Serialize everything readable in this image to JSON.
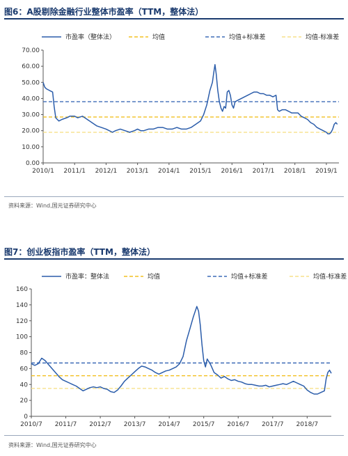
{
  "figures": [
    {
      "title": "图6：A股剔除金融行业整体市盈率（TTM，整体法）",
      "source": "资料来源：Wind,国元证券研究中心"
    },
    {
      "title": "图7：创业板指市盈率（TTM，整体法）",
      "source": "资料来源：Wind,国元证券研究中心"
    }
  ],
  "chart_data": [
    {
      "type": "line",
      "ylim": [
        0,
        70
      ],
      "yticks": [
        "0.00",
        "10.00",
        "20.00",
        "30.00",
        "40.00",
        "50.00",
        "60.00",
        "70.00"
      ],
      "xlim": [
        2010.0,
        2019.4
      ],
      "xticks": [
        {
          "label": "2010/1",
          "x": 2010.0
        },
        {
          "label": "2011/1",
          "x": 2011.0
        },
        {
          "label": "2012/1",
          "x": 2012.0
        },
        {
          "label": "2013/1",
          "x": 2013.0
        },
        {
          "label": "2014/1",
          "x": 2014.0
        },
        {
          "label": "2015/1",
          "x": 2015.0
        },
        {
          "label": "2016/1",
          "x": 2016.0
        },
        {
          "label": "2017/1",
          "x": 2017.0
        },
        {
          "label": "2018/1",
          "x": 2018.0
        },
        {
          "label": "2019/1",
          "x": 2019.0
        }
      ],
      "legend": [
        "市盈率（整体法）",
        "均值",
        "均值+标准差",
        "均值-标准差"
      ],
      "colors": {
        "pe": "#2a5caa",
        "mean": "#f2c020",
        "upper": "#3d6bb7",
        "lower": "#f7e08a"
      },
      "mean": 28.5,
      "upper": 38.0,
      "lower": 19.0,
      "series": {
        "x": [
          2010.0,
          2010.05,
          2010.1,
          2010.2,
          2010.3,
          2010.35,
          2010.4,
          2010.45,
          2010.5,
          2010.6,
          2010.75,
          2010.85,
          2011.0,
          2011.1,
          2011.25,
          2011.4,
          2011.55,
          2011.7,
          2011.85,
          2012.0,
          2012.1,
          2012.2,
          2012.3,
          2012.45,
          2012.6,
          2012.75,
          2012.9,
          2013.0,
          2013.1,
          2013.2,
          2013.35,
          2013.5,
          2013.65,
          2013.8,
          2013.95,
          2014.1,
          2014.25,
          2014.4,
          2014.55,
          2014.7,
          2014.85,
          2015.0,
          2015.1,
          2015.2,
          2015.3,
          2015.38,
          2015.42,
          2015.46,
          2015.5,
          2015.55,
          2015.6,
          2015.65,
          2015.7,
          2015.75,
          2015.8,
          2015.85,
          2015.9,
          2015.95,
          2016.0,
          2016.05,
          2016.1,
          2016.2,
          2016.3,
          2016.4,
          2016.5,
          2016.6,
          2016.7,
          2016.8,
          2016.9,
          2017.0,
          2017.1,
          2017.2,
          2017.3,
          2017.4,
          2017.45,
          2017.5,
          2017.6,
          2017.7,
          2017.8,
          2017.9,
          2018.0,
          2018.1,
          2018.2,
          2018.3,
          2018.4,
          2018.5,
          2018.6,
          2018.7,
          2018.8,
          2018.9,
          2019.0,
          2019.05,
          2019.1,
          2019.15,
          2019.2,
          2019.25,
          2019.3,
          2019.35
        ],
        "values": [
          50,
          47,
          46,
          45,
          44,
          35,
          28,
          27,
          26,
          27,
          28,
          29,
          29,
          28,
          29,
          27,
          25,
          23,
          22,
          21,
          20,
          19,
          20,
          21,
          20,
          19,
          20,
          21,
          20,
          20,
          21,
          21,
          22,
          22,
          21,
          21,
          22,
          21,
          21,
          22,
          24,
          26,
          30,
          36,
          45,
          50,
          56,
          61,
          55,
          45,
          38,
          34,
          32,
          35,
          34,
          44,
          45,
          42,
          36,
          34,
          38,
          39,
          40,
          41,
          42,
          43,
          44,
          44,
          43,
          43,
          42,
          42,
          41,
          42,
          33,
          32,
          33,
          33,
          32,
          31,
          31,
          31,
          29,
          28,
          27,
          25,
          24,
          22,
          21,
          20,
          19,
          18,
          18,
          19,
          21,
          24,
          25,
          24
        ]
      }
    },
    {
      "type": "line",
      "ylim": [
        0,
        160
      ],
      "yticks": [
        "0",
        "20",
        "40",
        "60",
        "80",
        "100",
        "120",
        "140",
        "160"
      ],
      "xlim": [
        2010.5,
        2019.2
      ],
      "xticks": [
        {
          "label": "2010/7",
          "x": 2010.5
        },
        {
          "label": "2011/7",
          "x": 2011.5
        },
        {
          "label": "2012/7",
          "x": 2012.5
        },
        {
          "label": "2013/7",
          "x": 2013.5
        },
        {
          "label": "2014/7",
          "x": 2014.5
        },
        {
          "label": "2015/7",
          "x": 2015.5
        },
        {
          "label": "2016/7",
          "x": 2016.5
        },
        {
          "label": "2017/7",
          "x": 2017.5
        },
        {
          "label": "2018/7",
          "x": 2018.5
        }
      ],
      "legend": [
        "市盈率：整体法",
        "均值",
        "均值+标准差",
        "均值-标准差"
      ],
      "colors": {
        "pe": "#2a5caa",
        "mean": "#f2c020",
        "upper": "#3d6bb7",
        "lower": "#f7e08a"
      },
      "mean": 51,
      "upper": 67,
      "lower": 35,
      "series": {
        "x": [
          2010.5,
          2010.6,
          2010.7,
          2010.8,
          2010.9,
          2011.0,
          2011.1,
          2011.2,
          2011.3,
          2011.4,
          2011.5,
          2011.6,
          2011.7,
          2011.8,
          2011.9,
          2012.0,
          2012.1,
          2012.2,
          2012.3,
          2012.4,
          2012.5,
          2012.6,
          2012.7,
          2012.8,
          2012.9,
          2013.0,
          2013.1,
          2013.2,
          2013.3,
          2013.4,
          2013.5,
          2013.6,
          2013.7,
          2013.8,
          2013.9,
          2014.0,
          2014.1,
          2014.2,
          2014.3,
          2014.4,
          2014.5,
          2014.6,
          2014.7,
          2014.8,
          2014.9,
          2015.0,
          2015.1,
          2015.2,
          2015.3,
          2015.35,
          2015.4,
          2015.45,
          2015.5,
          2015.55,
          2015.6,
          2015.7,
          2015.8,
          2015.9,
          2016.0,
          2016.1,
          2016.2,
          2016.3,
          2016.4,
          2016.5,
          2016.6,
          2016.7,
          2016.8,
          2016.9,
          2017.0,
          2017.1,
          2017.2,
          2017.3,
          2017.4,
          2017.5,
          2017.6,
          2017.7,
          2017.8,
          2017.9,
          2018.0,
          2018.1,
          2018.2,
          2018.3,
          2018.4,
          2018.5,
          2018.6,
          2018.7,
          2018.8,
          2018.9,
          2019.0,
          2019.05,
          2019.1,
          2019.15,
          2019.2
        ],
        "values": [
          66,
          64,
          66,
          73,
          70,
          65,
          60,
          55,
          50,
          46,
          44,
          42,
          40,
          38,
          35,
          32,
          34,
          36,
          37,
          36,
          37,
          35,
          34,
          31,
          30,
          33,
          38,
          44,
          48,
          52,
          56,
          60,
          63,
          62,
          60,
          58,
          55,
          53,
          55,
          57,
          58,
          60,
          62,
          66,
          75,
          95,
          110,
          125,
          138,
          132,
          115,
          90,
          70,
          62,
          72,
          65,
          55,
          52,
          48,
          50,
          47,
          45,
          46,
          44,
          43,
          41,
          40,
          40,
          39,
          38,
          38,
          39,
          37,
          38,
          39,
          40,
          41,
          40,
          42,
          44,
          42,
          40,
          38,
          33,
          30,
          28,
          28,
          30,
          32,
          47,
          55,
          58,
          54
        ]
      }
    }
  ]
}
